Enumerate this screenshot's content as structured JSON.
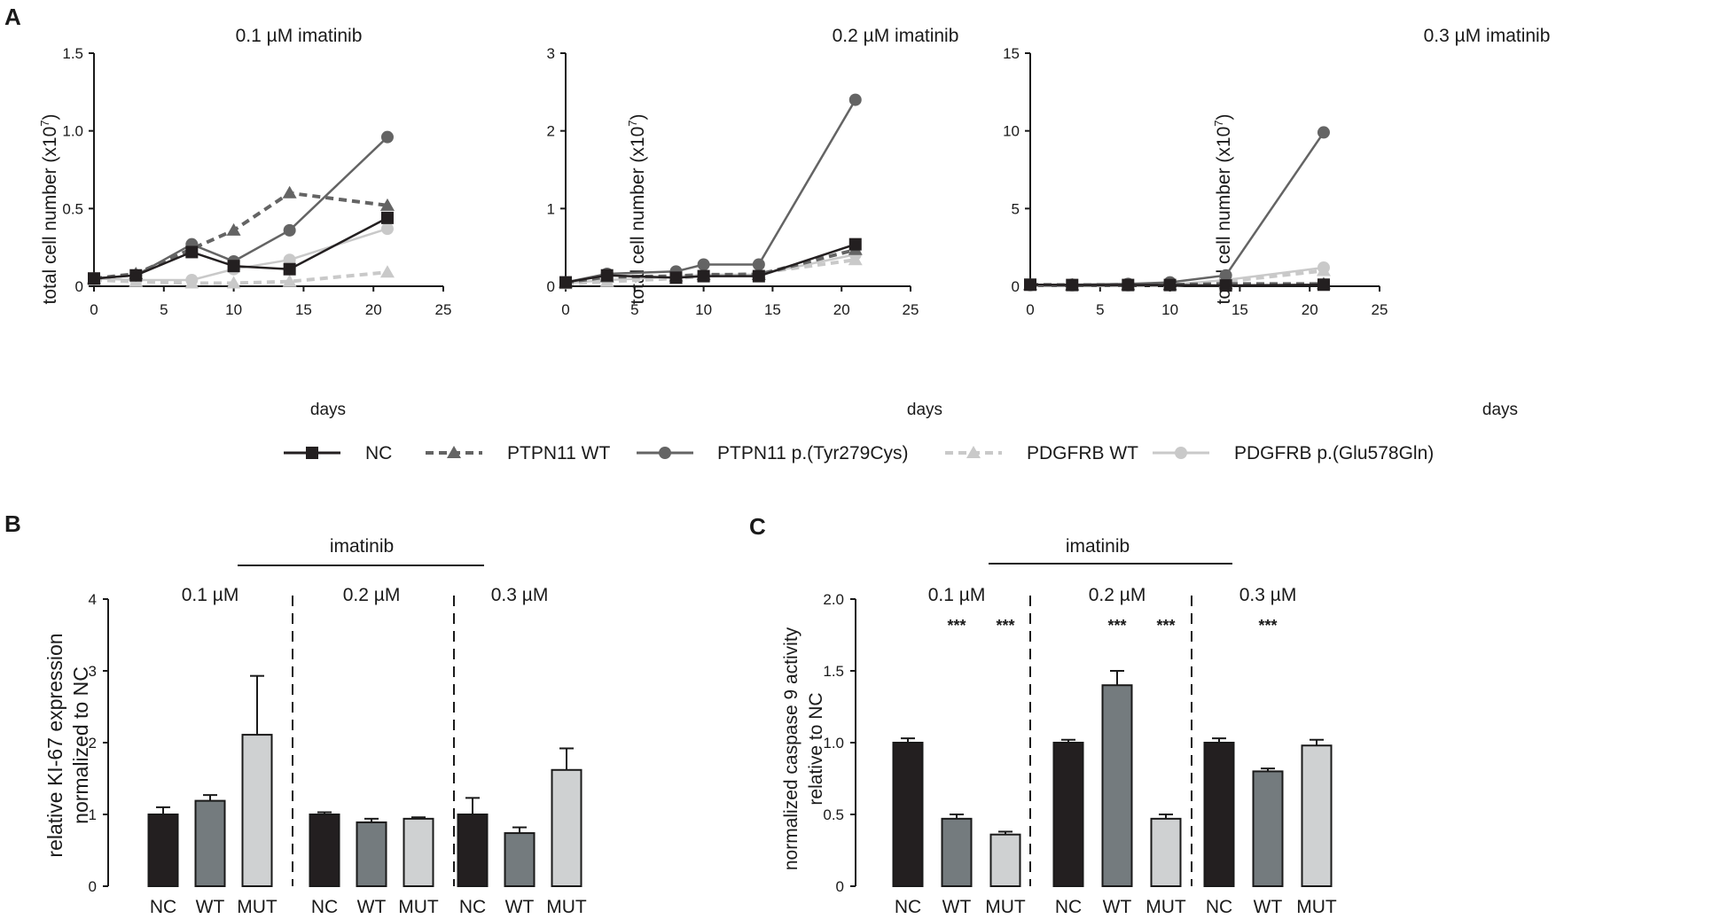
{
  "series_styles": {
    "NC": {
      "color": "#231f20",
      "marker": "square",
      "dash": ""
    },
    "PTPN11 WT": {
      "color": "#646464",
      "marker": "triangle",
      "dash": "9,6"
    },
    "PTPN11 p.(Tyr279Cys)": {
      "color": "#646464",
      "marker": "circle",
      "dash": ""
    },
    "PDGFRB WT": {
      "color": "#c9c9c9",
      "marker": "triangle",
      "dash": "9,6"
    },
    "PDGFRB p.(Glu578Gln)": {
      "color": "#c9c9c9",
      "marker": "circle",
      "dash": ""
    }
  },
  "bar_colors": {
    "NC": "#231f20",
    "WT": "#747b7e",
    "MUT": "#cfd1d2"
  },
  "legend": {
    "items": [
      "NC",
      "PTPN11 WT",
      "PTPN11 p.(Tyr279Cys)",
      "PDGFRB WT",
      "PDGFRB p.(Glu578Gln)"
    ]
  },
  "chart_data": [
    {
      "panel": "A",
      "type": "line",
      "title": "0.1 µM imatinib",
      "xlabel": "days",
      "ylabel": "total cell number (x10^7)",
      "xlim": [
        0,
        25
      ],
      "ylim": [
        0,
        1.5
      ],
      "xticks": [
        "0",
        "5",
        "10",
        "15",
        "20",
        "25"
      ],
      "yticks": [
        "0",
        "0.5",
        "1.0",
        "1.5"
      ],
      "series": [
        {
          "name": "NC",
          "x": [
            0,
            3,
            7,
            10,
            14,
            21
          ],
          "y": [
            0.05,
            0.07,
            0.22,
            0.13,
            0.11,
            0.44
          ]
        },
        {
          "name": "PTPN11 WT",
          "x": [
            0,
            3,
            7,
            10,
            14,
            21
          ],
          "y": [
            0.05,
            0.08,
            0.24,
            0.36,
            0.6,
            0.52
          ]
        },
        {
          "name": "PTPN11 p.(Tyr279Cys)",
          "x": [
            0,
            3,
            7,
            10,
            14,
            21
          ],
          "y": [
            0.05,
            0.07,
            0.27,
            0.16,
            0.36,
            0.96
          ]
        },
        {
          "name": "PDGFRB WT",
          "x": [
            0,
            3,
            7,
            10,
            14,
            21
          ],
          "y": [
            0.04,
            0.03,
            0.02,
            0.02,
            0.03,
            0.09
          ]
        },
        {
          "name": "PDGFRB p.(Glu578Gln)",
          "x": [
            0,
            3,
            7,
            10,
            14,
            21
          ],
          "y": [
            0.05,
            0.04,
            0.04,
            0.11,
            0.17,
            0.37
          ]
        }
      ]
    },
    {
      "panel": "A",
      "type": "line",
      "title": "0.2 µM imatinib",
      "xlabel": "days",
      "ylabel": "total cell number (x10^7)",
      "xlim": [
        0,
        25
      ],
      "ylim": [
        0,
        3
      ],
      "xticks": [
        "0",
        "5",
        "10",
        "15",
        "20",
        "25"
      ],
      "yticks": [
        "0",
        "1",
        "2",
        "3"
      ],
      "series": [
        {
          "name": "NC",
          "x": [
            0,
            3,
            8,
            10,
            14,
            21
          ],
          "y": [
            0.05,
            0.14,
            0.11,
            0.13,
            0.13,
            0.54
          ]
        },
        {
          "name": "PTPN11 WT",
          "x": [
            0,
            3,
            8,
            10,
            14,
            21
          ],
          "y": [
            0.05,
            0.12,
            0.13,
            0.15,
            0.15,
            0.47
          ]
        },
        {
          "name": "PTPN11 p.(Tyr279Cys)",
          "x": [
            0,
            3,
            8,
            10,
            14,
            21
          ],
          "y": [
            0.05,
            0.16,
            0.19,
            0.28,
            0.28,
            2.4
          ]
        },
        {
          "name": "PDGFRB WT",
          "x": [
            0,
            3,
            8,
            10,
            14,
            21
          ],
          "y": [
            0.03,
            0.06,
            0.1,
            0.13,
            0.17,
            0.34
          ]
        },
        {
          "name": "PDGFRB p.(Glu578Gln)",
          "x": [
            0,
            3,
            8,
            10,
            14,
            21
          ],
          "y": [
            0.04,
            0.08,
            0.12,
            0.15,
            0.15,
            0.41
          ]
        }
      ]
    },
    {
      "panel": "A",
      "type": "line",
      "title": "0.3 µM imatinib",
      "xlabel": "days",
      "ylabel": "total cell number (x10^7)",
      "xlim": [
        0,
        25
      ],
      "ylim": [
        0,
        15
      ],
      "xticks": [
        "0",
        "5",
        "10",
        "15",
        "20",
        "25"
      ],
      "yticks": [
        "0",
        "5",
        "10",
        "15"
      ],
      "series": [
        {
          "name": "NC",
          "x": [
            0,
            3,
            7,
            10,
            14,
            21
          ],
          "y": [
            0.1,
            0.08,
            0.08,
            0.08,
            0.05,
            0.1
          ]
        },
        {
          "name": "PTPN11 WT",
          "x": [
            0,
            3,
            7,
            10,
            14,
            21
          ],
          "y": [
            0.1,
            0.08,
            0.1,
            0.1,
            0.15,
            0.15
          ]
        },
        {
          "name": "PTPN11 p.(Tyr279Cys)",
          "x": [
            0,
            3,
            7,
            10,
            14,
            21
          ],
          "y": [
            0.1,
            0.1,
            0.15,
            0.25,
            0.7,
            9.9
          ]
        },
        {
          "name": "PDGFRB WT",
          "x": [
            0,
            3,
            7,
            10,
            14,
            21
          ],
          "y": [
            0.05,
            0.05,
            0.05,
            0.05,
            0.3,
            1.0
          ]
        },
        {
          "name": "PDGFRB p.(Glu578Gln)",
          "x": [
            0,
            3,
            7,
            10,
            14,
            21
          ],
          "y": [
            0.05,
            0.05,
            0.05,
            0.1,
            0.4,
            1.2
          ]
        }
      ]
    },
    {
      "panel": "B",
      "type": "bar",
      "header": "imatinib",
      "groups": [
        "0.1 µM",
        "0.2 µM",
        "0.3 µM"
      ],
      "categories": [
        "NC",
        "WT",
        "MUT"
      ],
      "ylabel_lines": [
        "relative KI-67 expression",
        "normalized to NC"
      ],
      "ylim": [
        0,
        4
      ],
      "yticks": [
        "0",
        "1",
        "2",
        "3",
        "4"
      ],
      "values": [
        [
          1.0,
          1.19,
          2.11
        ],
        [
          1.0,
          0.89,
          0.94
        ],
        [
          1.0,
          0.74,
          1.62
        ]
      ],
      "errors": [
        [
          0.1,
          0.08,
          0.82
        ],
        [
          0.03,
          0.05,
          0.02
        ],
        [
          0.23,
          0.08,
          0.3
        ]
      ],
      "significance": [
        [
          "",
          "",
          ""
        ],
        [
          "",
          "",
          ""
        ],
        [
          "",
          "",
          ""
        ]
      ]
    },
    {
      "panel": "C",
      "type": "bar",
      "header": "imatinib",
      "groups": [
        "0.1 µM",
        "0.2 µM",
        "0.3 µM"
      ],
      "categories": [
        "NC",
        "WT",
        "MUT"
      ],
      "ylabel_lines": [
        "normalized caspase 9 activity",
        "relative to NC"
      ],
      "ylim": [
        0,
        2.0
      ],
      "yticks": [
        "0",
        "0.5",
        "1.0",
        "1.5",
        "2.0"
      ],
      "values": [
        [
          1.0,
          0.47,
          0.36
        ],
        [
          1.0,
          1.4,
          0.47
        ],
        [
          1.0,
          0.8,
          0.98
        ]
      ],
      "errors": [
        [
          0.03,
          0.03,
          0.02
        ],
        [
          0.02,
          0.1,
          0.03
        ],
        [
          0.03,
          0.02,
          0.04
        ]
      ],
      "significance": [
        [
          "",
          "***",
          "***"
        ],
        [
          "",
          "***",
          "***"
        ],
        [
          "",
          "***",
          ""
        ]
      ]
    }
  ]
}
